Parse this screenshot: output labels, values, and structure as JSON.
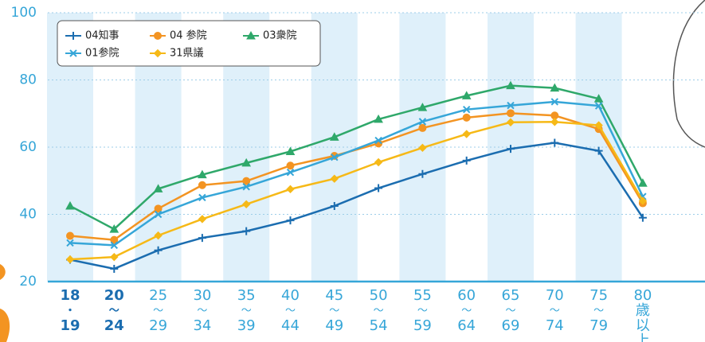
{
  "chart_data": {
    "type": "line",
    "categories": [
      [
        "18",
        "・",
        "19"
      ],
      [
        "20",
        "〜",
        "24"
      ],
      [
        "25",
        "〜",
        "29"
      ],
      [
        "30",
        "〜",
        "34"
      ],
      [
        "35",
        "〜",
        "39"
      ],
      [
        "40",
        "〜",
        "44"
      ],
      [
        "45",
        "〜",
        "49"
      ],
      [
        "50",
        "〜",
        "54"
      ],
      [
        "55",
        "〜",
        "59"
      ],
      [
        "60",
        "〜",
        "64"
      ],
      [
        "65",
        "〜",
        "69"
      ],
      [
        "70",
        "〜",
        "74"
      ],
      [
        "75",
        "〜",
        "79"
      ],
      [
        "80",
        "歳",
        "以",
        "上"
      ]
    ],
    "series": [
      {
        "name": "04知事",
        "color": "#1b6db0",
        "marker": "plus",
        "values": [
          26.5,
          23.8,
          29.3,
          33,
          35,
          38.2,
          42.5,
          47.8,
          52,
          56,
          59.5,
          61.3,
          58.9,
          39
        ]
      },
      {
        "name": "04 参院",
        "color": "#f39422",
        "marker": "circle",
        "values": [
          33.6,
          32.4,
          41.7,
          48.7,
          49.9,
          54.5,
          57.4,
          61.1,
          65.7,
          68.8,
          70.1,
          69.4,
          65.4,
          43.3
        ]
      },
      {
        "name": "03衆院",
        "color": "#2fa86a",
        "marker": "triangle",
        "values": [
          42.5,
          35.6,
          47.6,
          51.8,
          55.3,
          58.7,
          63,
          68.3,
          71.8,
          75.3,
          78.3,
          77.6,
          74.4,
          49.3
        ]
      },
      {
        "name": "01参院",
        "color": "#36a6d8",
        "marker": "x",
        "values": [
          31.5,
          30.8,
          40,
          45,
          48.2,
          52.5,
          57,
          62,
          67.6,
          71.2,
          72.4,
          73.5,
          72.3,
          45.3
        ]
      },
      {
        "name": "31県議",
        "color": "#f6b917",
        "marker": "diamond",
        "values": [
          26.6,
          27.3,
          33.7,
          38.6,
          43,
          47.5,
          50.6,
          55.5,
          59.8,
          63.9,
          67.4,
          67.5,
          66.5,
          44
        ]
      }
    ],
    "ylim": [
      20,
      100
    ],
    "yticks": [
      20,
      40,
      60,
      80,
      100
    ],
    "grid": true
  }
}
